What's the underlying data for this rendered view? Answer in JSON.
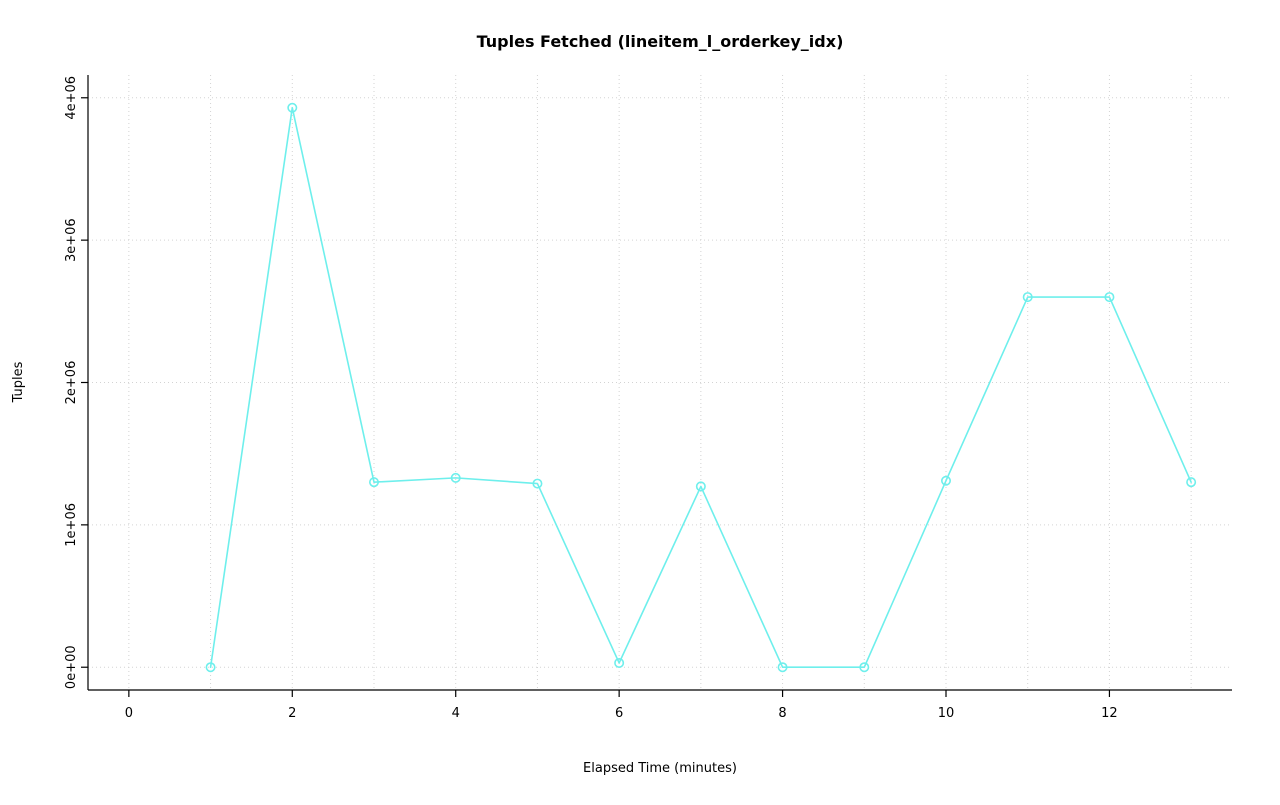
{
  "figure": {
    "background": "#ffffff"
  },
  "chart_data": {
    "type": "line",
    "title": "Tuples Fetched (lineitem_l_orderkey_idx)",
    "xlabel": "Elapsed Time (minutes)",
    "ylabel": "Tuples",
    "x": [
      1,
      2,
      3,
      4,
      5,
      6,
      7,
      8,
      9,
      10,
      11,
      12,
      13
    ],
    "values": [
      0,
      3930000,
      1300000,
      1330000,
      1290000,
      30000,
      1270000,
      0,
      0,
      1310000,
      2600000,
      2600000,
      1300000
    ],
    "xlim": [
      -0.5,
      13.5
    ],
    "ylim": [
      -160000,
      4160000
    ],
    "xticks": {
      "values": [
        0,
        2,
        4,
        6,
        8,
        10,
        12
      ],
      "labels": [
        "0",
        "2",
        "4",
        "6",
        "8",
        "10",
        "12"
      ]
    },
    "yticks": {
      "values": [
        0,
        1000000,
        2000000,
        3000000,
        4000000
      ],
      "labels": [
        "0e+00",
        "1e+06",
        "2e+06",
        "3e+06",
        "4e+06"
      ]
    },
    "grid": {
      "x_values": [
        0,
        1,
        2,
        3,
        4,
        5,
        6,
        7,
        8,
        9,
        10,
        11,
        12,
        13
      ],
      "y_values": [
        0,
        1000000,
        2000000,
        3000000,
        4000000
      ],
      "style": "dotted",
      "color": "#d3d3d3"
    },
    "series_color": "#6eefec",
    "axis_color": "#000000",
    "marker": "open-circle",
    "legend": "none"
  }
}
